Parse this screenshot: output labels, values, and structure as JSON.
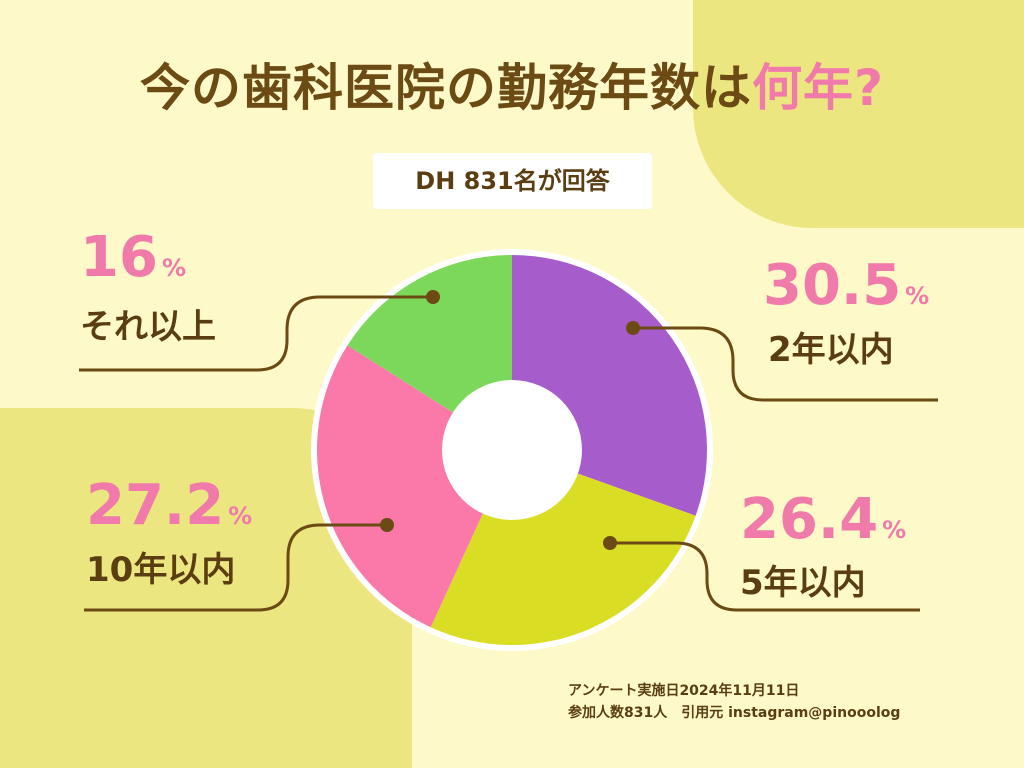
{
  "title": {
    "main": "今の歯科医院の勤務年数は",
    "accent": "何年?"
  },
  "respondents": "DH 831名が回答",
  "chart_data": {
    "type": "pie",
    "unit": "%",
    "slices": [
      {
        "label": "2年以内",
        "value": 30.5,
        "value_text": "30.5",
        "color": "#a75ccb"
      },
      {
        "label": "5年以内",
        "value": 26.4,
        "value_text": "26.4",
        "color": "#d9dd24"
      },
      {
        "label": "10年以内",
        "value": 27.2,
        "value_text": "27.2",
        "color": "#fb79a9"
      },
      {
        "label": "それ以上",
        "value": 16,
        "value_text": "16",
        "color": "#7cd85a"
      }
    ]
  },
  "footer": {
    "line1": "アンケート実施日2024年11月11日",
    "line2": "参加人数831人　引用元 instagram@pinooolog"
  },
  "colors": {
    "background": "#fdf9c8",
    "accent_block": "#ece680",
    "accent_text": "#f07bab",
    "primary_text": "#5a3e12",
    "leader_line": "#6b4a14"
  }
}
